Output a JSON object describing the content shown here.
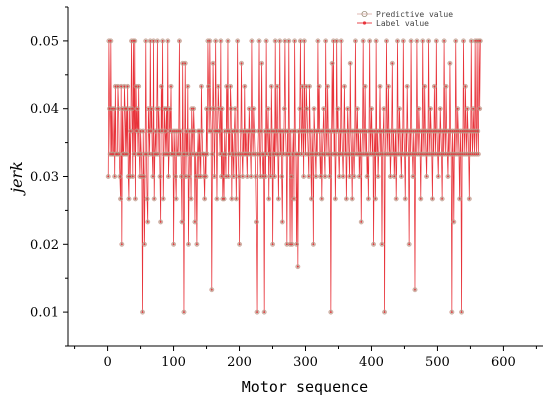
{
  "colors": {
    "line": "#e8333a",
    "marker_fill": "#9a8f7a",
    "marker_edge": "#d49a8e",
    "axis": "#000000"
  },
  "chart_data": {
    "type": "line",
    "xlabel": "Motor sequence",
    "ylabel": "jerk",
    "xlim": [
      -60,
      660
    ],
    "ylim": [
      0.005,
      0.055
    ],
    "xticks": [
      0,
      100,
      200,
      300,
      400,
      500,
      600
    ],
    "yticks": [
      0.01,
      0.02,
      0.03,
      0.04,
      0.05
    ],
    "ytick_labels": [
      "0.01",
      "0.02",
      "0.03",
      "0.04",
      "0.05"
    ],
    "grid": false,
    "legend_position": "top-right",
    "series": [
      {
        "name": "Predictive value",
        "marker": "hollow-circle"
      },
      {
        "name": "Label value",
        "marker": "filled-dot"
      }
    ],
    "x_start": 1,
    "x_end": 565,
    "values": [
      0.03,
      0.05,
      0.04,
      0.0333,
      0.05,
      0.0333,
      0.04,
      0.0333,
      0.0333,
      0.04,
      0.03,
      0.0433,
      0.0333,
      0.0333,
      0.0333,
      0.0433,
      0.04,
      0.0333,
      0.03,
      0.0267,
      0.0433,
      0.02,
      0.04,
      0.0333,
      0.0333,
      0.0433,
      0.04,
      0.0333,
      0.04,
      0.0333,
      0.0433,
      0.03,
      0.0267,
      0.04,
      0.03,
      0.0367,
      0.05,
      0.04,
      0.03,
      0.05,
      0.0333,
      0.05,
      0.0267,
      0.0433,
      0.0367,
      0.04,
      0.0333,
      0.0433,
      0.0333,
      0.03,
      0.0367,
      0.0333,
      0.03,
      0.01,
      0.0367,
      0.03,
      0.02,
      0.0333,
      0.05,
      0.0333,
      0.0267,
      0.0233,
      0.04,
      0.0367,
      0.0333,
      0.05,
      0.0367,
      0.04,
      0.0333,
      0.03,
      0.05,
      0.0267,
      0.0333,
      0.0367,
      0.0333,
      0.04,
      0.05,
      0.0333,
      0.04,
      0.0367,
      0.03,
      0.0233,
      0.0433,
      0.0367,
      0.05,
      0.0267,
      0.0333,
      0.04,
      0.0367,
      0.0333,
      0.04,
      0.0333,
      0.05,
      0.03,
      0.0333,
      0.04,
      0.0367,
      0.0433,
      0.0333,
      0.0333,
      0.0367,
      0.02,
      0.0333,
      0.0367,
      0.03,
      0.0267,
      0.0367,
      0.0333,
      0.0333,
      0.0367,
      0.05,
      0.0333,
      0.0367,
      0.03,
      0.0233,
      0.0467,
      0.0333,
      0.01,
      0.0333,
      0.0467,
      0.03,
      0.0367,
      0.0333,
      0.0433,
      0.02,
      0.03,
      0.0367,
      0.0333,
      0.0267,
      0.04,
      0.0367,
      0.0333,
      0.04,
      0.0367,
      0.0233,
      0.0333,
      0.03,
      0.02,
      0.0333,
      0.0367,
      0.03,
      0.0367,
      0.0333,
      0.03,
      0.0433,
      0.0367,
      0.0333,
      0.0333,
      0.03,
      0.0267,
      0.0333,
      0.03,
      0.04,
      0.0333,
      0.05,
      0.0433,
      0.0367,
      0.05,
      0.04,
      0.0367,
      0.0133,
      0.0333,
      0.0467,
      0.04,
      0.03,
      0.0367,
      0.05,
      0.0367,
      0.0267,
      0.0367,
      0.0433,
      0.04,
      0.0367,
      0.0333,
      0.05,
      0.03,
      0.04,
      0.0267,
      0.0333,
      0.0267,
      0.0367,
      0.0333,
      0.03,
      0.0433,
      0.0367,
      0.05,
      0.03,
      0.0367,
      0.0333,
      0.0433,
      0.04,
      0.0267,
      0.0367,
      0.0333,
      0.03,
      0.0367,
      0.04,
      0.0333,
      0.0267,
      0.0367,
      0.05,
      0.0333,
      0.03,
      0.02,
      0.0333,
      0.0367,
      0.0467,
      0.0333,
      0.03,
      0.0367,
      0.0333,
      0.0433,
      0.0333,
      0.0367,
      0.0333,
      0.03,
      0.0367,
      0.0333,
      0.04,
      0.0367,
      0.0333,
      0.03,
      0.05,
      0.0367,
      0.0333,
      0.04,
      0.0367,
      0.0333,
      0.03,
      0.0233,
      0.01,
      0.0333,
      0.0367,
      0.05,
      0.0333,
      0.03,
      0.0367,
      0.0467,
      0.0333,
      0.03,
      0.0333,
      0.01,
      0.0367,
      0.03,
      0.05,
      0.0333,
      0.0367,
      0.04,
      0.0267,
      0.0367,
      0.0333,
      0.03,
      0.0433,
      0.0367,
      0.02,
      0.0333,
      0.0367,
      0.03,
      0.05,
      0.0333,
      0.0367,
      0.0433,
      0.0333,
      0.0267,
      0.0367,
      0.05,
      0.0333,
      0.0367,
      0.03,
      0.0233,
      0.0367,
      0.0333,
      0.04,
      0.05,
      0.0367,
      0.0333,
      0.02,
      0.0367,
      0.0333,
      0.05,
      0.0333,
      0.02,
      0.0367,
      0.03,
      0.02,
      0.0333,
      0.0367,
      0.0267,
      0.05,
      0.0367,
      0.0333,
      0.02,
      0.0333,
      0.0167,
      0.0367,
      0.0333,
      0.04,
      0.05,
      0.0367,
      0.0333,
      0.0433,
      0.0367,
      0.03,
      0.05,
      0.0367,
      0.0333,
      0.0433,
      0.04,
      0.0367,
      0.0333,
      0.03,
      0.0433,
      0.0367,
      0.0333,
      0.0267,
      0.0367,
      0.0333,
      0.02,
      0.04,
      0.0367,
      0.0333,
      0.03,
      0.0367,
      0.0333,
      0.05,
      0.0367,
      0.0433,
      0.0333,
      0.03,
      0.0367,
      0.0267,
      0.0333,
      0.0367,
      0.04,
      0.0333,
      0.03,
      0.05,
      0.0367,
      0.0333,
      0.0433,
      0.0367,
      0.0333,
      0.03,
      0.0367,
      0.01,
      0.0333,
      0.0467,
      0.0367,
      0.05,
      0.0333,
      0.0367,
      0.0267,
      0.0333,
      0.05,
      0.0367,
      0.04,
      0.0333,
      0.03,
      0.0367,
      0.0333,
      0.05,
      0.0367,
      0.0333,
      0.03,
      0.0367,
      0.0433,
      0.0333,
      0.0367,
      0.0267,
      0.0333,
      0.04,
      0.0367,
      0.0333,
      0.03,
      0.0467,
      0.0367,
      0.0333,
      0.0267,
      0.0367,
      0.0333,
      0.03,
      0.0367,
      0.05,
      0.0333,
      0.0367,
      0.04,
      0.0333,
      0.0367,
      0.03,
      0.0333,
      0.0367,
      0.0233,
      0.0333,
      0.0367,
      0.05,
      0.0333,
      0.0367,
      0.0433,
      0.0333,
      0.0367,
      0.03,
      0.0333,
      0.0267,
      0.0367,
      0.05,
      0.0333,
      0.0367,
      0.04,
      0.0333,
      0.0367,
      0.02,
      0.0333,
      0.0367,
      0.0267,
      0.05,
      0.0333,
      0.0367,
      0.03,
      0.0333,
      0.0367,
      0.0433,
      0.0333,
      0.0367,
      0.02,
      0.0333,
      0.0367,
      0.04,
      0.01,
      0.0333,
      0.0367,
      0.05,
      0.0333,
      0.0367,
      0.0433,
      0.0333,
      0.0367,
      0.03,
      0.0333,
      0.0367,
      0.0467,
      0.0333,
      0.0367,
      0.03,
      0.0333,
      0.0367,
      0.0267,
      0.0333,
      0.05,
      0.0367,
      0.0333,
      0.04,
      0.0367,
      0.0333,
      0.03,
      0.0367,
      0.0333,
      0.05,
      0.0367,
      0.0333,
      0.0267,
      0.0367,
      0.0333,
      0.0433,
      0.0367,
      0.0333,
      0.02,
      0.0367,
      0.0333,
      0.05,
      0.0367,
      0.0333,
      0.03,
      0.0367,
      0.0333,
      0.0133,
      0.0367,
      0.0333,
      0.05,
      0.0367,
      0.0333,
      0.04,
      0.0367,
      0.0333,
      0.0267,
      0.0367,
      0.0333,
      0.05,
      0.0367,
      0.0333,
      0.0433,
      0.0367,
      0.0333,
      0.03,
      0.0367,
      0.0333,
      0.05,
      0.0367,
      0.0333,
      0.04,
      0.0367,
      0.0333,
      0.0267,
      0.0367,
      0.0333,
      0.0433,
      0.0367,
      0.0333,
      0.05,
      0.0367,
      0.0333,
      0.03,
      0.0367,
      0.0333,
      0.04,
      0.0367,
      0.0333,
      0.0267,
      0.0367,
      0.0333,
      0.05,
      0.0367,
      0.0333,
      0.0433,
      0.0367,
      0.0333,
      0.03,
      0.0367,
      0.0333,
      0.0467,
      0.0367,
      0.0333,
      0.01,
      0.0367,
      0.0333,
      0.0233,
      0.0367,
      0.0333,
      0.05,
      0.0367,
      0.0333,
      0.04,
      0.0367,
      0.0333,
      0.0267,
      0.0367,
      0.0333,
      0.01,
      0.0367,
      0.0333,
      0.05,
      0.0367,
      0.0333,
      0.0433,
      0.0367,
      0.0333,
      0.04,
      0.0367,
      0.0333,
      0.0267,
      0.0367,
      0.0333,
      0.05,
      0.0367,
      0.0333,
      0.04,
      0.0367,
      0.0333,
      0.05,
      0.0367,
      0.0333,
      0.05,
      0.0367,
      0.0333,
      0.05,
      0.04,
      0.05
    ]
  }
}
